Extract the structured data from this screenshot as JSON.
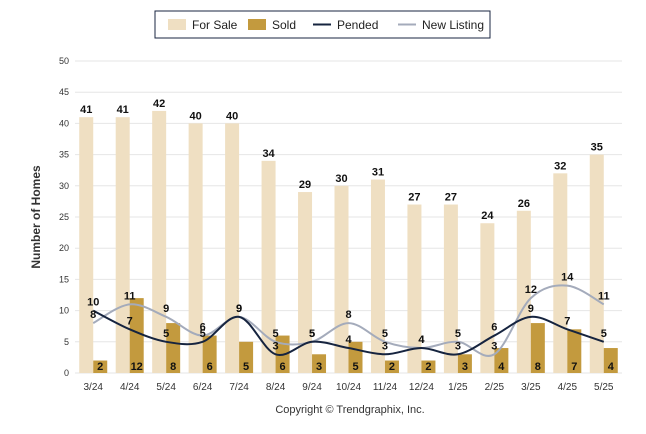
{
  "chart_data": {
    "type": "bar",
    "title": "",
    "xlabel": "",
    "ylabel": "Number of Homes",
    "ylim": [
      0,
      50
    ],
    "yticks": [
      0,
      5,
      10,
      15,
      20,
      25,
      30,
      35,
      40,
      45,
      50
    ],
    "grid": true,
    "legend_position": "top-center",
    "categories": [
      "3/24",
      "4/24",
      "5/24",
      "6/24",
      "7/24",
      "8/24",
      "9/24",
      "10/24",
      "11/24",
      "12/24",
      "1/25",
      "2/25",
      "3/25",
      "4/25",
      "5/25"
    ],
    "series": [
      {
        "name": "For Sale",
        "kind": "bar",
        "color": "#efdfc2",
        "values": [
          41,
          41,
          42,
          40,
          40,
          34,
          29,
          30,
          31,
          27,
          27,
          24,
          26,
          32,
          35
        ]
      },
      {
        "name": "Sold",
        "kind": "bar",
        "color": "#c39a3e",
        "values": [
          2,
          12,
          8,
          6,
          5,
          6,
          3,
          5,
          2,
          2,
          3,
          4,
          8,
          7,
          4
        ]
      },
      {
        "name": "Pended",
        "kind": "line",
        "color": "#16243f",
        "values": [
          10,
          7,
          5,
          5,
          9,
          3,
          5,
          4,
          3,
          4,
          3,
          6,
          9,
          7,
          5
        ]
      },
      {
        "name": "New Listing",
        "kind": "line",
        "color": "#a4abbb",
        "values": [
          8,
          11,
          9,
          6,
          9,
          5,
          5,
          8,
          5,
          4,
          5,
          3,
          12,
          14,
          11
        ]
      }
    ]
  },
  "footer": {
    "copyright": "Copyright © Trendgraphix, Inc."
  }
}
